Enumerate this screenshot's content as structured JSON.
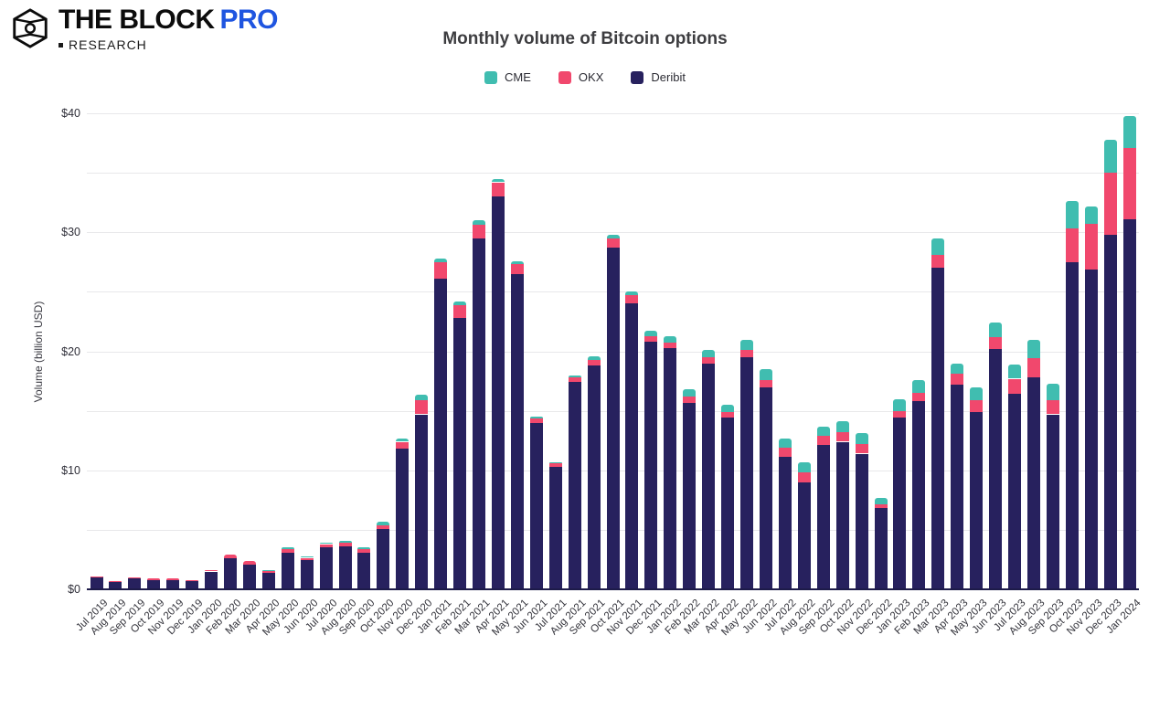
{
  "header": {
    "brand": "THE BLOCK",
    "brand_pro": "PRO",
    "brand_sub": "RESEARCH"
  },
  "chart_data": {
    "type": "bar",
    "stacked": true,
    "title": "Monthly volume of Bitcoin options",
    "ylabel": "Volume (billion USD)",
    "ylim": [
      0,
      40
    ],
    "yticks": [
      0,
      10,
      20,
      30,
      40
    ],
    "ytick_labels": [
      "$0",
      "$10",
      "$20",
      "$30",
      "$40"
    ],
    "minor_gridlines": [
      5,
      15,
      25,
      35
    ],
    "grid": true,
    "legend_position": "top-center",
    "stack_order_bottom_to_top": [
      "Deribit",
      "OKX",
      "CME"
    ],
    "colors": {
      "CME": "#40bdb0",
      "OKX": "#f1486d",
      "Deribit": "#27215e"
    },
    "categories": [
      "Jul 2019",
      "Aug 2019",
      "Sep 2019",
      "Oct 2019",
      "Nov 2019",
      "Dec 2019",
      "Jan 2020",
      "Feb 2020",
      "Mar 2020",
      "Apr 2020",
      "May 2020",
      "Jun 2020",
      "Jul 2020",
      "Aug 2020",
      "Sep 2020",
      "Oct 2020",
      "Nov 2020",
      "Dec 2020",
      "Jan 2021",
      "Feb 2021",
      "Mar 2021",
      "Apr 2021",
      "May 2021",
      "Jun 2021",
      "Jul 2021",
      "Aug 2021",
      "Sep 2021",
      "Oct 2021",
      "Nov 2021",
      "Dec 2021",
      "Jan 2022",
      "Feb 2022",
      "Mar 2022",
      "Apr 2022",
      "May 2022",
      "Jun 2022",
      "Jul 2022",
      "Aug 2022",
      "Sep 2022",
      "Oct 2022",
      "Nov 2022",
      "Dec 2022",
      "Jan 2023",
      "Feb 2023",
      "Mar 2023",
      "Apr 2023",
      "May 2023",
      "Jun 2023",
      "Jul 2023",
      "Aug 2023",
      "Sep 2023",
      "Oct 2023",
      "Nov 2023",
      "Dec 2023",
      "Jan 2024"
    ],
    "series": [
      {
        "name": "CME",
        "values": [
          0,
          0,
          0,
          0,
          0,
          0,
          0,
          0,
          0,
          0.05,
          0.1,
          0.1,
          0.1,
          0.15,
          0.15,
          0.3,
          0.25,
          0.45,
          0.3,
          0.3,
          0.4,
          0.3,
          0.3,
          0.15,
          0.1,
          0.15,
          0.25,
          0.35,
          0.35,
          0.4,
          0.5,
          0.6,
          0.6,
          0.65,
          0.9,
          0.9,
          0.8,
          0.9,
          0.8,
          0.9,
          0.9,
          0.55,
          1.0,
          1.1,
          1.4,
          0.9,
          1.1,
          1.2,
          1.2,
          1.6,
          1.4,
          2.3,
          1.5,
          2.8,
          2.7
        ]
      },
      {
        "name": "OKX",
        "values": [
          0.05,
          0.05,
          0.1,
          0.1,
          0.1,
          0.05,
          0.1,
          0.3,
          0.3,
          0.15,
          0.3,
          0.15,
          0.3,
          0.3,
          0.3,
          0.3,
          0.6,
          1.2,
          1.4,
          1.1,
          1.1,
          1.2,
          0.8,
          0.4,
          0.3,
          0.4,
          0.5,
          0.75,
          0.7,
          0.5,
          0.45,
          0.5,
          0.5,
          0.5,
          0.6,
          0.6,
          0.8,
          0.8,
          0.8,
          0.8,
          0.8,
          0.35,
          0.6,
          0.7,
          1.1,
          0.9,
          1.0,
          1.0,
          1.3,
          1.6,
          1.2,
          2.8,
          3.8,
          5.2,
          6.0
        ]
      },
      {
        "name": "Deribit",
        "values": [
          1.05,
          0.65,
          0.9,
          0.8,
          0.8,
          0.7,
          1.5,
          2.6,
          2.1,
          1.4,
          3.1,
          2.5,
          3.5,
          3.6,
          3.1,
          5.1,
          11.8,
          14.7,
          26.1,
          22.8,
          29.5,
          33.0,
          26.5,
          14.0,
          10.3,
          17.4,
          18.8,
          28.7,
          24.0,
          20.8,
          20.3,
          15.7,
          19.0,
          14.4,
          19.5,
          17.0,
          11.1,
          9.0,
          12.1,
          12.4,
          11.4,
          6.8,
          14.4,
          15.8,
          27.0,
          17.2,
          14.9,
          20.2,
          16.4,
          17.8,
          14.7,
          27.5,
          26.9,
          29.8,
          31.1
        ]
      }
    ]
  }
}
